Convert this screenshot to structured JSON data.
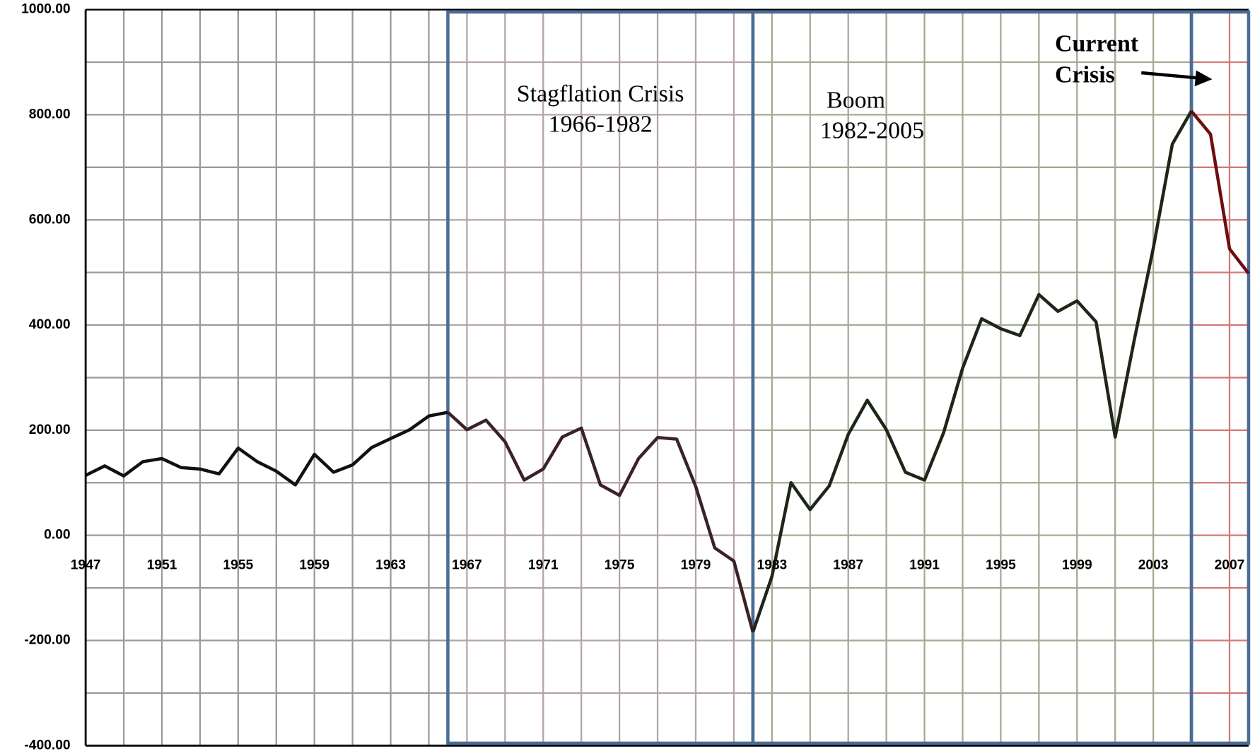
{
  "chart_data": {
    "type": "line",
    "x": [
      1947,
      1948,
      1949,
      1950,
      1951,
      1952,
      1953,
      1954,
      1955,
      1956,
      1957,
      1958,
      1959,
      1960,
      1961,
      1962,
      1963,
      1964,
      1965,
      1966,
      1967,
      1968,
      1969,
      1970,
      1971,
      1972,
      1973,
      1974,
      1975,
      1976,
      1977,
      1978,
      1979,
      1980,
      1981,
      1982,
      1983,
      1984,
      1985,
      1986,
      1987,
      1988,
      1989,
      1990,
      1991,
      1992,
      1993,
      1994,
      1995,
      1996,
      1997,
      1998,
      1999,
      2000,
      2001,
      2002,
      2003,
      2004,
      2005,
      2006,
      2007,
      2008
    ],
    "series": [
      {
        "color": "#111111",
        "values": [
          114,
          132,
          113,
          140,
          146,
          129,
          126,
          117,
          166,
          140,
          122,
          96,
          154,
          120,
          134,
          167,
          184,
          201,
          227,
          234,
          201,
          219,
          178,
          105,
          126,
          187,
          204,
          96,
          76,
          146,
          186,
          183,
          93,
          -24,
          -49,
          -184,
          -78,
          100,
          49,
          94,
          192,
          257,
          201,
          120,
          105,
          195,
          318,
          412,
          393,
          380,
          458,
          426,
          446,
          406,
          187,
          371,
          546,
          744,
          807,
          763,
          545,
          498
        ]
      }
    ],
    "xlim": [
      1947,
      2008
    ],
    "xticks": [
      1947,
      1951,
      1955,
      1959,
      1963,
      1967,
      1971,
      1975,
      1979,
      1983,
      1987,
      1991,
      1995,
      1999,
      2003,
      2007
    ],
    "ylim": [
      -400,
      1000
    ],
    "yticks": [
      {
        "value": -400,
        "label": "-400.00"
      },
      {
        "value": -200,
        "label": "-200.00"
      },
      {
        "value": 0,
        "label": "0.00"
      },
      {
        "value": 200,
        "label": "200.00"
      },
      {
        "value": 400,
        "label": "400.00"
      },
      {
        "value": 600,
        "label": "600.00"
      },
      {
        "value": 800,
        "label": "800.00"
      },
      {
        "value": 1000,
        "label": "1000.00"
      }
    ],
    "grid": true,
    "grid_color": "#9a9a9a",
    "border_color": "#4a6d96",
    "regions": [
      {
        "start": 1966,
        "end": 1982,
        "label": [
          "Stagflation Crisis",
          "1966-1982"
        ],
        "grid_color": "#b4a4a8",
        "line_color": "#3a2226"
      },
      {
        "start": 1982,
        "end": 2005,
        "label": [
          "Boom",
          "1982-2005"
        ],
        "grid_color": "#a4aa94",
        "line_color": "#1e2618"
      },
      {
        "start": 2005,
        "end": 2008,
        "label": [
          "Current",
          "Crisis"
        ],
        "grid_color": "#d27a7a",
        "line_color": "#6e0e10"
      }
    ]
  }
}
